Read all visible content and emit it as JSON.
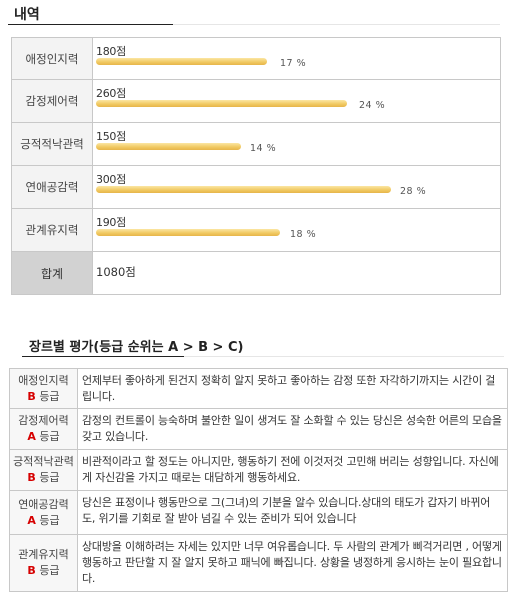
{
  "summary": {
    "title": "내역",
    "rows": [
      {
        "label": "애정인지력",
        "points": "180점",
        "percent": "17 %",
        "value": 0.17
      },
      {
        "label": "감정제어력",
        "points": "260점",
        "percent": "24 %",
        "value": 0.24
      },
      {
        "label": "긍적적낙관력",
        "points": "150점",
        "percent": "14 %",
        "value": 0.14
      },
      {
        "label": "연애공감력",
        "points": "300점",
        "percent": "28 %",
        "value": 0.28
      },
      {
        "label": "관계유지력",
        "points": "190점",
        "percent": "18 %",
        "value": 0.18
      }
    ],
    "total_label": "합계",
    "total_value": "1080점"
  },
  "genre": {
    "title": "장르별 평가(등급 순위는 A > B > C)",
    "grade_suffix": "등급",
    "rows": [
      {
        "name": "애정인지력",
        "grade": "B",
        "desc": "언제부터 좋아하게 된건지 정확히 알지 못하고 좋아하는 감정 또한 자각하기까지는 시간이 걸립니다."
      },
      {
        "name": "감정제어력",
        "grade": "A",
        "desc": "감정의 컨트롤이 능숙하며 불안한 일이 생겨도 잘 소화할 수 있는 당신은 성숙한 어른의 모습을 갖고 있습니다."
      },
      {
        "name": "긍적적낙관력",
        "grade": "B",
        "desc": "비관적이라고 할 정도는 아니지만, 행동하기 전에 이것저것 고민해 버리는 성향입니다. 자신에게 자신감을 가지고 때로는 대담하게 행동하세요."
      },
      {
        "name": "연애공감력",
        "grade": "A",
        "desc": "당신은 표정이나 행동만으로 그(그녀)의 기분을 알수 있습니다.상대의 태도가 갑자기 바뀌어도, 위기를 기회로 잘 받아 넘길 수 있는 준비가 되어 있습니다"
      },
      {
        "name": "관계유지력",
        "grade": "B",
        "desc": "상대방을 이해하려는 자세는 있지만 너무 여유롭습니다. 두 사람의 관계가 삐걱거리면 , 어떻게 행동하고 판단할 지 잘 알지 못하고 패닉에 빠집니다. 상황을 냉정하게 응시하는 눈이 필요합니다."
      }
    ]
  }
}
